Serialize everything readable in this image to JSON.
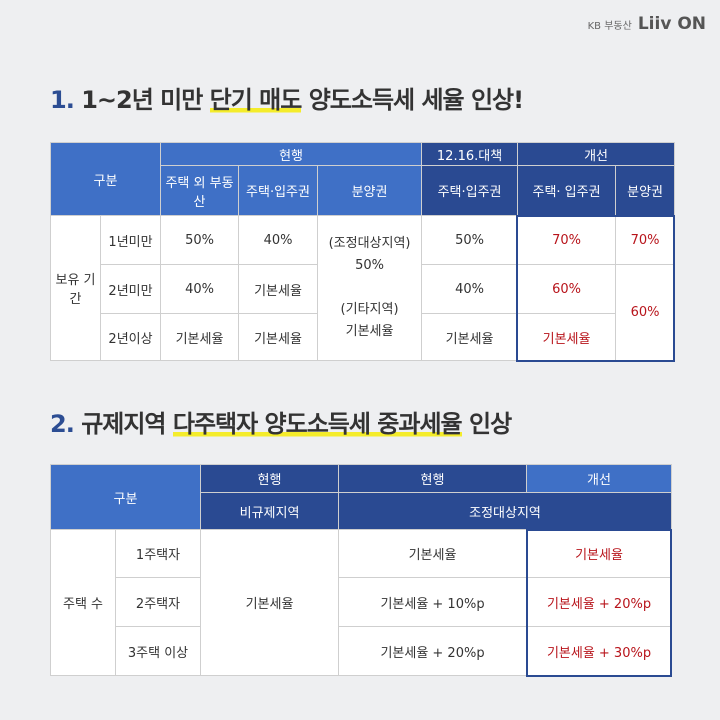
{
  "logo": {
    "kb": "KB 부동산",
    "liiv": "Liiv ON"
  },
  "section1": {
    "number": "1.",
    "title_pre": "1~2년 미만",
    "title_hl": "단기 매도",
    "title_post": "양도소득세 세율 인상!",
    "table": {
      "h_category": "구분",
      "h_current": "현행",
      "h_policy": "12.16.대책",
      "h_improve": "개선",
      "h_house_excl": "주택 외 부동산",
      "h_house_right": "주택·입주권",
      "h_presale": "분양권",
      "h_policy_sub": "주택·입주권",
      "h_improve_house": "주택· 입주권",
      "h_improve_presale": "분양권",
      "row_group": "보유 기간",
      "rows": [
        {
          "label": "1년미만",
          "c1": "50%",
          "c2": "40%",
          "c4": "50%",
          "c5": "70%",
          "c6": "70%"
        },
        {
          "label": "2년미만",
          "c1": "40%",
          "c2": "기본세율",
          "c4": "40%",
          "c5": "60%"
        },
        {
          "label": "2년이상",
          "c1": "기본세율",
          "c2": "기본세율",
          "c4": "기본세율",
          "c5": "기본세율"
        }
      ],
      "presale_merged_1": "(조정대상지역)",
      "presale_merged_2": "50%",
      "presale_merged_3": "(기타지역)",
      "presale_merged_4": "기본세율",
      "improve_presale_merged": "60%"
    }
  },
  "section2": {
    "number": "2.",
    "title_pre": "규제지역",
    "title_hl": "다주택자 양도소득세 중과세율",
    "title_post": "인상",
    "table": {
      "h_category": "구분",
      "h_current_a": "현행",
      "h_current_b": "현행",
      "h_improve": "개선",
      "h_non_reg": "비규제지역",
      "h_adjusted": "조정대상지역",
      "row_group": "주택 수",
      "merged_non_reg": "기본세율",
      "rows": [
        {
          "label": "1주택자",
          "current": "기본세율",
          "improve": "기본세율"
        },
        {
          "label": "2주택자",
          "current": "기본세율 + 10%p",
          "improve": "기본세율 + 20%p"
        },
        {
          "label": "3주택 이상",
          "current": "기본세율 + 20%p",
          "improve": "기본세율 + 30%p"
        }
      ]
    }
  }
}
